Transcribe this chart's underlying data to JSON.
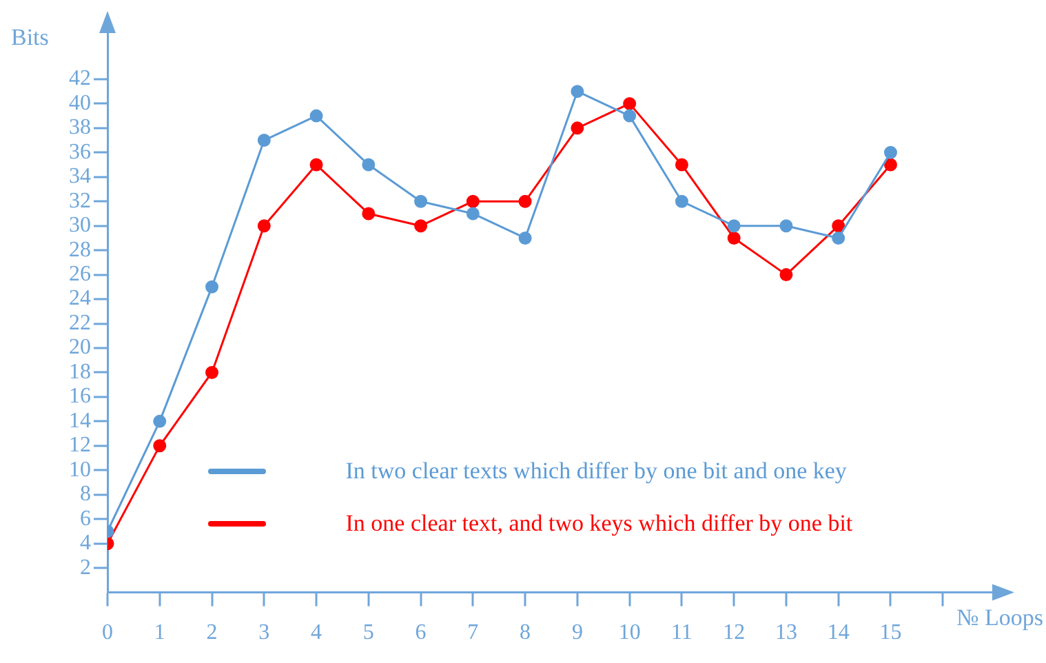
{
  "chart_data": {
    "type": "line",
    "xlabel": "№ Loops",
    "ylabel": "Bits",
    "x": [
      0,
      1,
      2,
      3,
      4,
      5,
      6,
      7,
      8,
      9,
      10,
      11,
      12,
      13,
      14,
      15
    ],
    "series": [
      {
        "name": "In two clear texts which differ by one bit and one key",
        "color": "#5b9bd5",
        "values": [
          5,
          14,
          25,
          37,
          39,
          35,
          32,
          31,
          29,
          41,
          39,
          32,
          30,
          30,
          29,
          36
        ]
      },
      {
        "name": "In one clear text, and two keys which differ by one bit",
        "color": "#ff0000",
        "values": [
          4,
          12,
          18,
          30,
          35,
          31,
          30,
          32,
          32,
          38,
          40,
          35,
          29,
          26,
          30,
          35
        ]
      }
    ],
    "xlim": [
      0,
      17
    ],
    "xticks": [
      0,
      1,
      2,
      3,
      4,
      5,
      6,
      7,
      8,
      9,
      10,
      11,
      12,
      13,
      14,
      15,
      {
        "value": 16,
        "label": null
      }
    ],
    "ylim": [
      0,
      46
    ],
    "yticks": [
      2,
      4,
      6,
      8,
      10,
      12,
      14,
      16,
      18,
      20,
      22,
      24,
      26,
      28,
      30,
      32,
      34,
      36,
      38,
      40,
      42
    ],
    "grid": false,
    "legend": "bottom",
    "marker": "circle",
    "line_style": "solid"
  }
}
